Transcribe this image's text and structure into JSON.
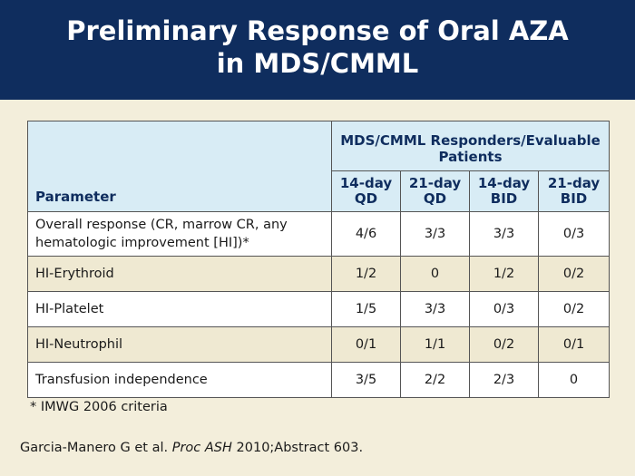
{
  "title": {
    "line1": "Preliminary Response of Oral AZA",
    "line2": "in MDS/CMML"
  },
  "table": {
    "parameter_header": "Parameter",
    "group_header": "MDS/CMML Responders/Evaluable Patients",
    "columns": [
      {
        "line1": "14-day",
        "line2": "QD"
      },
      {
        "line1": "21-day",
        "line2": "QD"
      },
      {
        "line1": "14-day",
        "line2": "BID"
      },
      {
        "line1": "21-day",
        "line2": "BID"
      }
    ],
    "rows": [
      {
        "parameter": "Overall response (CR, marrow CR, any hematologic improvement [HI])*",
        "values": [
          "4/6",
          "3/3",
          "3/3",
          "0/3"
        ]
      },
      {
        "parameter": "HI-Erythroid",
        "values": [
          "1/2",
          "0",
          "1/2",
          "0/2"
        ]
      },
      {
        "parameter": "HI-Platelet",
        "values": [
          "1/5",
          "3/3",
          "0/3",
          "0/2"
        ]
      },
      {
        "parameter": "HI-Neutrophil",
        "values": [
          "0/1",
          "1/1",
          "0/2",
          "0/1"
        ]
      },
      {
        "parameter": "Transfusion independence",
        "values": [
          "3/5",
          "2/2",
          "2/3",
          "0"
        ]
      }
    ]
  },
  "footnote": "* IMWG 2006 criteria",
  "citation": {
    "authors": "Garcia-Manero G et al.",
    "journal": "Proc ASH",
    "details": "2010;Abstract 603."
  }
}
